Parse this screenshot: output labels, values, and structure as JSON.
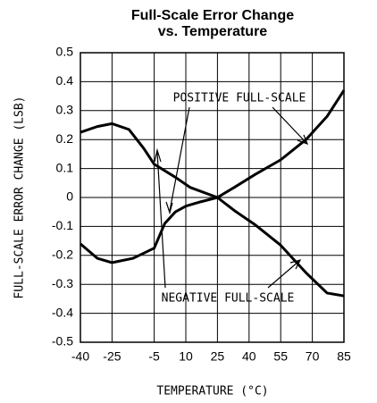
{
  "chart_data": {
    "type": "line",
    "title": [
      "Full-Scale Error Change",
      "vs. Temperature"
    ],
    "x_label": "TEMPERATURE (°C)",
    "y_label": "FULL-SCALE ERROR CHANGE (LSB)",
    "annotations": [
      "POSITIVE FULL-SCALE",
      "NEGATIVE FULL-SCALE"
    ],
    "xlim": [
      -40,
      85
    ],
    "xticks": [
      -40,
      -25,
      -5,
      10,
      25,
      40,
      55,
      70,
      85
    ],
    "ylim": [
      -0.5,
      0.5
    ],
    "yticks": [
      0.5,
      0.4,
      0.3,
      0.2,
      0.1,
      0,
      -0.1,
      -0.2,
      -0.3,
      -0.4,
      -0.5
    ],
    "grid": true,
    "series": [
      {
        "name": "POSITIVE FULL-SCALE",
        "color": "#000000",
        "x": [
          -40,
          -32,
          -25,
          -15,
          -5,
          0,
          5,
          10,
          17,
          25,
          33,
          43,
          55,
          67,
          77,
          85
        ],
        "values": [
          -0.16,
          -0.21,
          -0.225,
          -0.21,
          -0.175,
          -0.09,
          -0.05,
          -0.03,
          -0.015,
          0,
          0.035,
          0.08,
          0.13,
          0.2,
          0.28,
          0.37
        ]
      },
      {
        "name": "NEGATIVE FULL-SCALE",
        "color": "#000000",
        "x": [
          -40,
          -32,
          -25,
          -17,
          -10,
          -5,
          5,
          12,
          25,
          33,
          43,
          55,
          67,
          77,
          85
        ],
        "values": [
          0.225,
          0.245,
          0.255,
          0.235,
          0.17,
          0.115,
          0.07,
          0.035,
          0,
          -0.045,
          -0.095,
          -0.165,
          -0.26,
          -0.33,
          -0.34
        ]
      }
    ]
  }
}
